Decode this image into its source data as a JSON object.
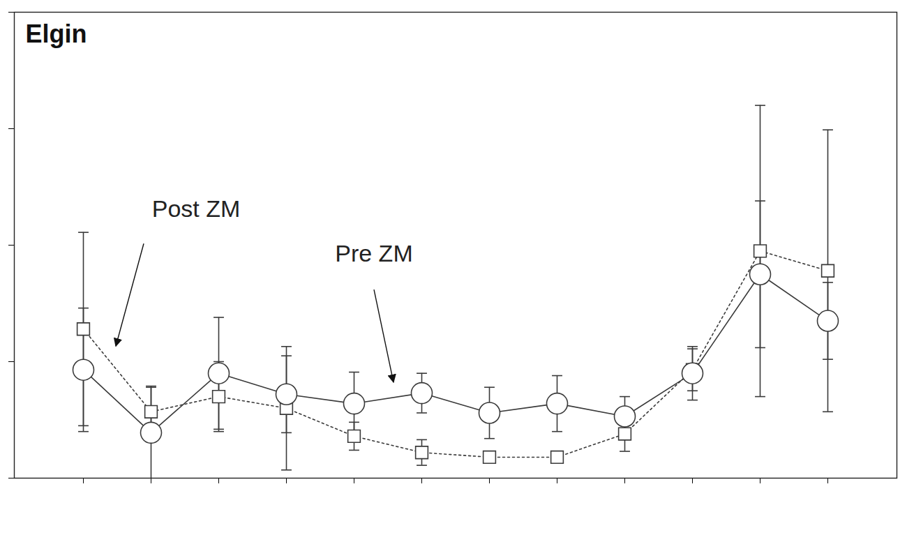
{
  "chart_data": {
    "type": "line",
    "title": "Elgin",
    "categories": [
      null,
      null,
      null,
      null,
      null,
      null,
      null,
      null,
      null,
      null,
      null,
      null
    ],
    "series": [
      {
        "name": "Post ZM",
        "color": "#3a3a3a",
        "marker": "square",
        "line_style": "dotted",
        "values": [
          1.28,
          0.57,
          0.7,
          0.6,
          0.36,
          0.22,
          0.18,
          0.18,
          0.38,
          0.93,
          1.95,
          1.78
        ],
        "errors": [
          0.83,
          0.21,
          0.3,
          0.53,
          0.12,
          0.11,
          0.03,
          0.03,
          0.15,
          0.18,
          1.25,
          1.21
        ]
      },
      {
        "name": "Pre ZM",
        "color": "#3a3a3a",
        "marker": "circle",
        "line_style": "solid",
        "values": [
          0.93,
          0.39,
          0.9,
          0.72,
          0.64,
          0.73,
          0.56,
          0.64,
          0.53,
          0.9,
          1.75,
          1.35
        ],
        "errors": [
          0.53,
          0.4,
          0.48,
          0.33,
          0.27,
          0.17,
          0.22,
          0.24,
          0.17,
          0.23,
          0.63,
          0.33
        ]
      }
    ],
    "ylim": [
      0,
      4
    ],
    "yticks": [
      0,
      1,
      2,
      3,
      4
    ],
    "tick_labels": false,
    "grid": false
  }
}
